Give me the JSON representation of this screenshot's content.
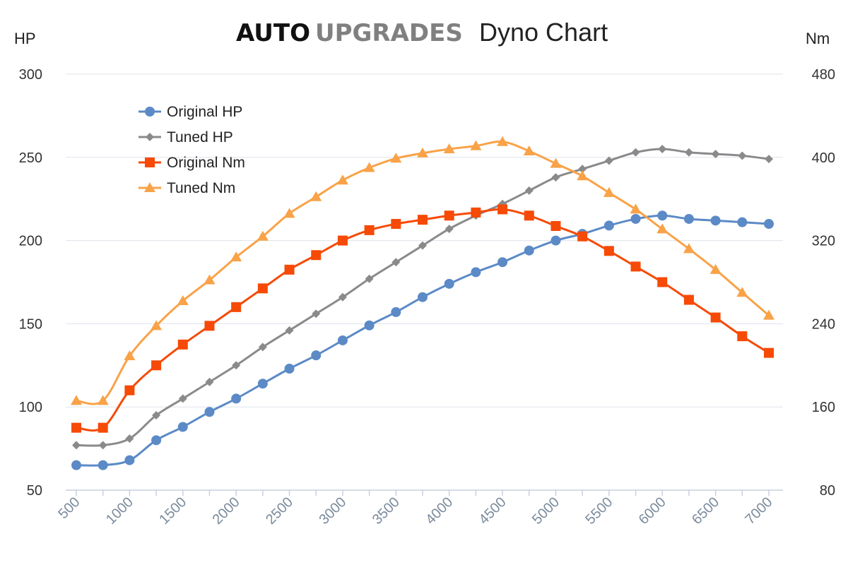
{
  "header": {
    "brand_primary": "AUTO",
    "brand_secondary": "UPGRADES",
    "title": "Dyno Chart"
  },
  "chart_data": {
    "type": "line",
    "title": "Dyno Chart",
    "xlabel": "",
    "ylabel_left": "HP",
    "ylabel_right": "Nm",
    "x": [
      500,
      750,
      1000,
      1250,
      1500,
      1750,
      2000,
      2250,
      2500,
      2750,
      3000,
      3250,
      3500,
      3750,
      4000,
      4250,
      4500,
      4750,
      5000,
      5250,
      5500,
      5750,
      6000,
      6250,
      6500,
      6750,
      7000
    ],
    "x_tick_labels": [
      "500",
      "1000",
      "1500",
      "2000",
      "2500",
      "3000",
      "3500",
      "4000",
      "4500",
      "5000",
      "5500",
      "6000",
      "6500",
      "7000"
    ],
    "x_tick_values": [
      500,
      1000,
      1500,
      2000,
      2500,
      3000,
      3500,
      4000,
      4500,
      5000,
      5500,
      6000,
      6500,
      7000
    ],
    "xlim": [
      500,
      7000
    ],
    "ylim_left": [
      50,
      300
    ],
    "ylim_right": [
      80,
      480
    ],
    "y_left_ticks": [
      "50",
      "100",
      "150",
      "200",
      "250",
      "300"
    ],
    "y_left_tick_values": [
      50,
      100,
      150,
      200,
      250,
      300
    ],
    "y_right_ticks": [
      "80",
      "160",
      "240",
      "320",
      "400",
      "480"
    ],
    "y_right_tick_values": [
      80,
      160,
      240,
      320,
      400,
      480
    ],
    "grid": true,
    "legend_position": "top-left",
    "series": [
      {
        "name": "Original HP",
        "axis": "left",
        "color": "#5b8ac6",
        "marker": "circle",
        "values": [
          65,
          65,
          68,
          80,
          88,
          97,
          105,
          114,
          123,
          131,
          140,
          149,
          157,
          166,
          174,
          181,
          187,
          194,
          200,
          204,
          209,
          213,
          215,
          213,
          212,
          211,
          210
        ]
      },
      {
        "name": "Tuned HP",
        "axis": "left",
        "color": "#8a8a8a",
        "marker": "diamond",
        "values": [
          77,
          77,
          81,
          95,
          105,
          115,
          125,
          136,
          146,
          156,
          166,
          177,
          187,
          197,
          207,
          215,
          222,
          230,
          238,
          243,
          248,
          253,
          255,
          253,
          252,
          251,
          249
        ]
      },
      {
        "name": "Original Nm",
        "axis": "right",
        "color": "#f64a06",
        "marker": "square",
        "values": [
          140,
          140,
          176,
          200,
          220,
          238,
          256,
          274,
          292,
          306,
          320,
          330,
          336,
          340,
          344,
          347,
          350,
          344,
          334,
          324,
          310,
          295,
          280,
          263,
          246,
          228,
          212
        ]
      },
      {
        "name": "Tuned Nm",
        "axis": "right",
        "color": "#f9a248",
        "marker": "triangle",
        "values": [
          166,
          166,
          209,
          238,
          262,
          282,
          304,
          324,
          346,
          362,
          378,
          390,
          399,
          404,
          408,
          411,
          415,
          406,
          394,
          382,
          366,
          350,
          331,
          312,
          292,
          270,
          248
        ]
      }
    ]
  }
}
